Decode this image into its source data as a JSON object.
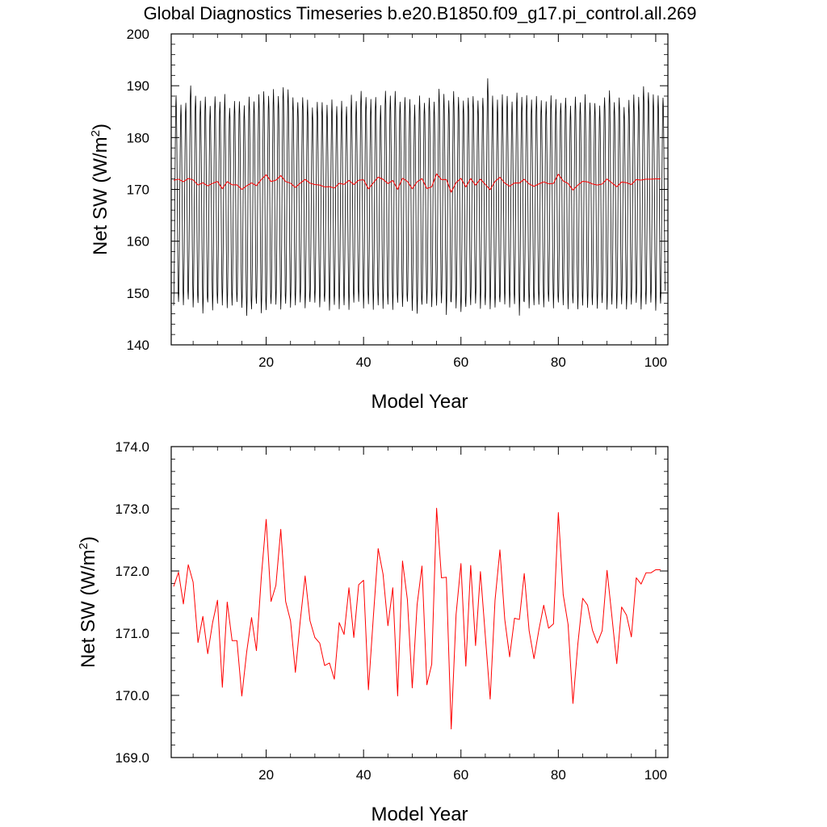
{
  "title": "Global Diagnostics Timeseries b.e20.B1850.f09_g17.pi_control.all.269",
  "chart_data": [
    {
      "type": "line",
      "xlabel": "Model Year",
      "ylabel": "Net SW (W/m",
      "ylabel_sup": "2",
      "ylabel_close": ")",
      "xlim": [
        0.5,
        102.5
      ],
      "ylim": [
        140,
        200
      ],
      "x_ticks": [
        20,
        40,
        60,
        80,
        100
      ],
      "y_ticks": [
        140,
        150,
        160,
        170,
        180,
        190,
        200
      ],
      "y_decimals": 0,
      "grid": false,
      "series": [
        {
          "kind": "monthly",
          "color": "#000000",
          "x_start": 1.0,
          "x_step": 0.0833333,
          "months": 1212,
          "max": [
            188,
            186,
            187,
            190,
            188,
            187,
            188,
            186,
            188,
            187,
            188,
            186,
            187,
            187,
            186,
            188,
            187,
            188,
            189,
            188,
            189,
            188,
            190,
            189,
            188,
            187,
            188,
            187,
            186,
            187,
            187,
            186,
            187,
            186,
            187,
            186,
            188,
            187,
            189,
            188,
            187,
            188,
            186,
            189,
            188,
            189,
            187,
            188,
            187,
            186,
            188,
            187,
            188,
            187,
            189,
            188,
            187,
            189,
            188,
            187,
            188,
            188,
            187,
            188,
            191,
            188,
            187,
            188,
            188,
            187,
            189,
            188,
            188,
            187,
            188,
            187,
            187,
            188,
            187,
            187,
            188,
            186,
            188,
            187,
            188,
            187,
            187,
            186,
            188,
            189,
            187,
            188,
            186,
            187,
            188,
            188,
            190,
            189,
            188,
            188,
            188
          ],
          "min": [
            148,
            148,
            148,
            149,
            147,
            148,
            146,
            148,
            147,
            148,
            148,
            147,
            148,
            148,
            147,
            146,
            147,
            148,
            146,
            147,
            148,
            148,
            147,
            148,
            147,
            148,
            148,
            147,
            148,
            148,
            147,
            148,
            147,
            148,
            147,
            148,
            147,
            148,
            148,
            147,
            148,
            147,
            148,
            147,
            148,
            147,
            148,
            147,
            148,
            147,
            146,
            148,
            148,
            147,
            148,
            148,
            146,
            148,
            147,
            146,
            147,
            148,
            148,
            147,
            148,
            147,
            147,
            148,
            148,
            147,
            148,
            146,
            148,
            147,
            148,
            148,
            147,
            148,
            147,
            148,
            148,
            147,
            148,
            147,
            148,
            147,
            148,
            147,
            148,
            147,
            148,
            147,
            148,
            147,
            148,
            148,
            147,
            148,
            148,
            147,
            148
          ]
        },
        {
          "kind": "annual",
          "color": "#ff0000",
          "x": [
            1,
            2,
            3,
            4,
            5,
            6,
            7,
            8,
            9,
            10,
            11,
            12,
            13,
            14,
            15,
            16,
            17,
            18,
            19,
            20,
            21,
            22,
            23,
            24,
            25,
            26,
            27,
            28,
            29,
            30,
            31,
            32,
            33,
            34,
            35,
            36,
            37,
            38,
            39,
            40,
            41,
            42,
            43,
            44,
            45,
            46,
            47,
            48,
            49,
            50,
            51,
            52,
            53,
            54,
            55,
            56,
            57,
            58,
            59,
            60,
            61,
            62,
            63,
            64,
            65,
            66,
            67,
            68,
            69,
            70,
            71,
            72,
            73,
            74,
            75,
            76,
            77,
            78,
            79,
            80,
            81,
            82,
            83,
            84,
            85,
            86,
            87,
            88,
            89,
            90,
            91,
            92,
            93,
            94,
            95,
            96,
            97,
            98,
            99,
            100,
            101
          ],
          "y": [
            171.75,
            171.98,
            171.47,
            172.1,
            171.82,
            170.85,
            171.27,
            170.67,
            171.17,
            171.53,
            170.13,
            171.5,
            170.88,
            170.88,
            169.99,
            170.7,
            171.25,
            170.72,
            171.9,
            172.83,
            171.51,
            171.77,
            172.67,
            171.51,
            171.2,
            170.37,
            171.2,
            171.92,
            171.2,
            170.93,
            170.84,
            170.48,
            170.52,
            170.26,
            171.17,
            170.98,
            171.73,
            170.93,
            171.78,
            171.85,
            170.09,
            171.25,
            172.36,
            171.95,
            171.12,
            171.73,
            169.99,
            172.16,
            171.54,
            170.12,
            171.46,
            172.08,
            170.17,
            170.5,
            173.01,
            171.89,
            171.9,
            169.46,
            171.3,
            172.12,
            170.47,
            172.09,
            170.8,
            171.99,
            170.96,
            169.94,
            171.53,
            172.34,
            171.22,
            170.62,
            171.24,
            171.22,
            171.96,
            171.04,
            170.59,
            171.05,
            171.45,
            171.08,
            171.15,
            172.94,
            171.62,
            171.14,
            169.87,
            170.82,
            171.56,
            171.45,
            171.05,
            170.84,
            171.04,
            172.01,
            171.27,
            170.51,
            171.42,
            171.29,
            170.94,
            171.89,
            171.79,
            171.97,
            171.97,
            172.02,
            172.02
          ]
        }
      ]
    },
    {
      "type": "line",
      "xlabel": "Model Year",
      "ylabel": "Net SW (W/m",
      "ylabel_sup": "2",
      "ylabel_close": ")",
      "xlim": [
        0.5,
        102.5
      ],
      "ylim": [
        169,
        174
      ],
      "x_ticks": [
        20,
        40,
        60,
        80,
        100
      ],
      "y_ticks": [
        169.0,
        170.0,
        171.0,
        172.0,
        173.0,
        174.0
      ],
      "y_decimals": 1,
      "grid": false,
      "series": [
        {
          "kind": "annual",
          "color": "#ff0000",
          "x": [
            1,
            2,
            3,
            4,
            5,
            6,
            7,
            8,
            9,
            10,
            11,
            12,
            13,
            14,
            15,
            16,
            17,
            18,
            19,
            20,
            21,
            22,
            23,
            24,
            25,
            26,
            27,
            28,
            29,
            30,
            31,
            32,
            33,
            34,
            35,
            36,
            37,
            38,
            39,
            40,
            41,
            42,
            43,
            44,
            45,
            46,
            47,
            48,
            49,
            50,
            51,
            52,
            53,
            54,
            55,
            56,
            57,
            58,
            59,
            60,
            61,
            62,
            63,
            64,
            65,
            66,
            67,
            68,
            69,
            70,
            71,
            72,
            73,
            74,
            75,
            76,
            77,
            78,
            79,
            80,
            81,
            82,
            83,
            84,
            85,
            86,
            87,
            88,
            89,
            90,
            91,
            92,
            93,
            94,
            95,
            96,
            97,
            98,
            99,
            100,
            101
          ],
          "y": [
            171.75,
            171.98,
            171.47,
            172.1,
            171.82,
            170.85,
            171.27,
            170.67,
            171.17,
            171.53,
            170.13,
            171.5,
            170.88,
            170.88,
            169.99,
            170.7,
            171.25,
            170.72,
            171.9,
            172.83,
            171.51,
            171.77,
            172.67,
            171.51,
            171.2,
            170.37,
            171.2,
            171.92,
            171.2,
            170.93,
            170.84,
            170.48,
            170.52,
            170.26,
            171.17,
            170.98,
            171.73,
            170.93,
            171.78,
            171.85,
            170.09,
            171.25,
            172.36,
            171.95,
            171.12,
            171.73,
            169.99,
            172.16,
            171.54,
            170.12,
            171.46,
            172.08,
            170.17,
            170.5,
            173.01,
            171.89,
            171.9,
            169.46,
            171.3,
            172.12,
            170.47,
            172.09,
            170.8,
            171.99,
            170.96,
            169.94,
            171.53,
            172.34,
            171.22,
            170.62,
            171.24,
            171.22,
            171.96,
            171.04,
            170.59,
            171.05,
            171.45,
            171.08,
            171.15,
            172.94,
            171.62,
            171.14,
            169.87,
            170.82,
            171.56,
            171.45,
            171.05,
            170.84,
            171.04,
            172.01,
            171.27,
            170.51,
            171.42,
            171.29,
            170.94,
            171.89,
            171.79,
            171.97,
            171.97,
            172.02,
            172.02
          ]
        }
      ]
    }
  ]
}
